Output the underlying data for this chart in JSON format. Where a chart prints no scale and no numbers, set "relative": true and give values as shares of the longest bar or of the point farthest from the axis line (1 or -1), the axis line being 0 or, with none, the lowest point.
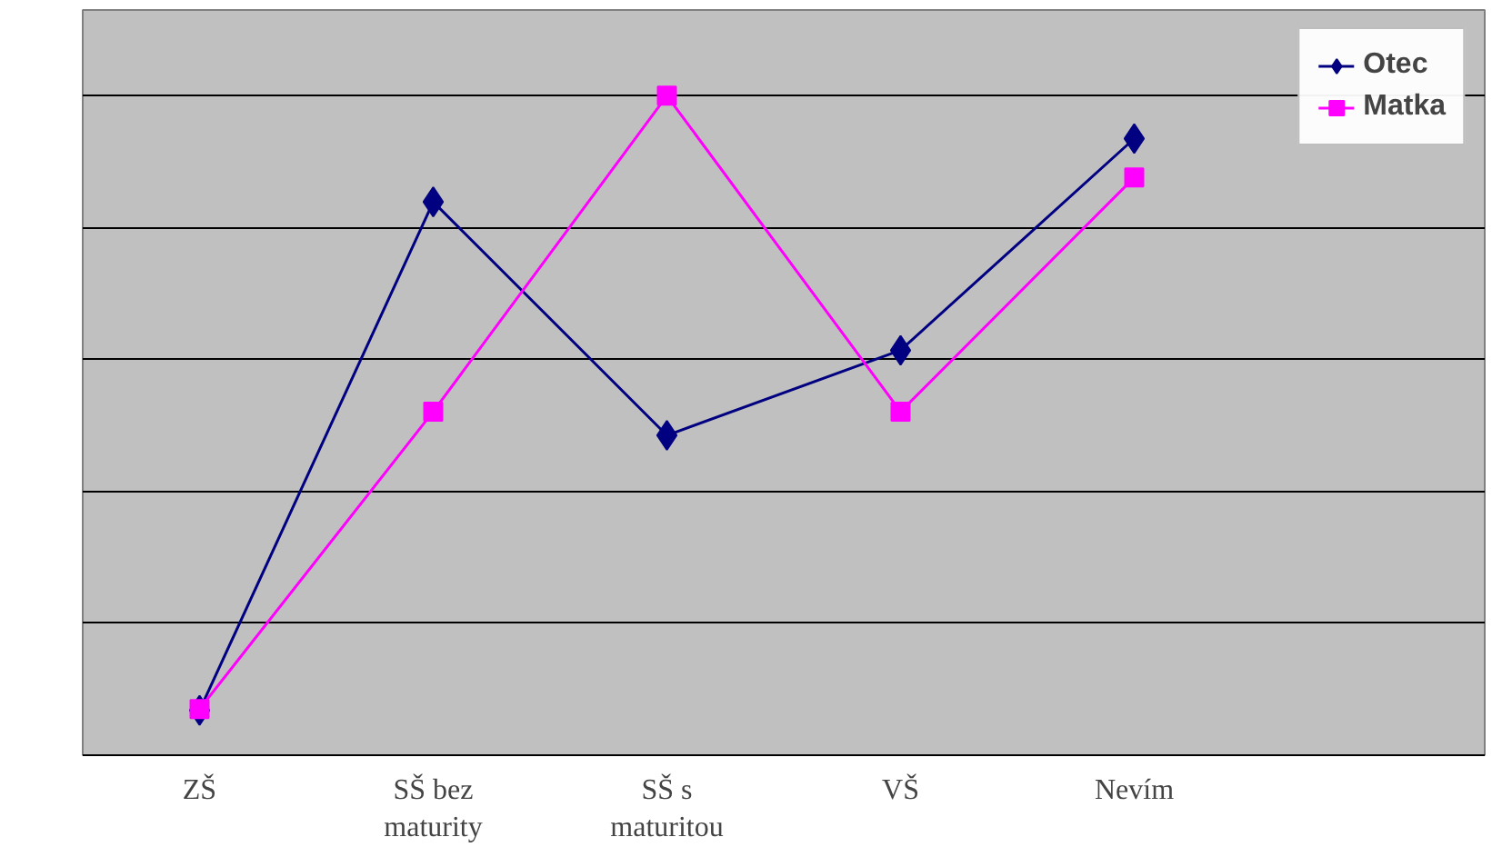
{
  "chart_data": {
    "type": "line",
    "relative": true,
    "categories": [
      "ZŠ",
      "SŠ bez maturity",
      "SŠ s maturitou",
      "VŠ",
      "Nevím",
      null
    ],
    "series": [
      {
        "name": "Otec",
        "color": "#000080",
        "marker": "diamond",
        "values": [
          0.068,
          0.839,
          0.485,
          0.614,
          0.935,
          null
        ]
      },
      {
        "name": "Matka",
        "color": "#ff00ff",
        "marker": "square",
        "values": [
          0.07,
          0.521,
          1.0,
          0.521,
          0.876,
          null
        ]
      }
    ],
    "grid": "y",
    "legend": "top right"
  }
}
